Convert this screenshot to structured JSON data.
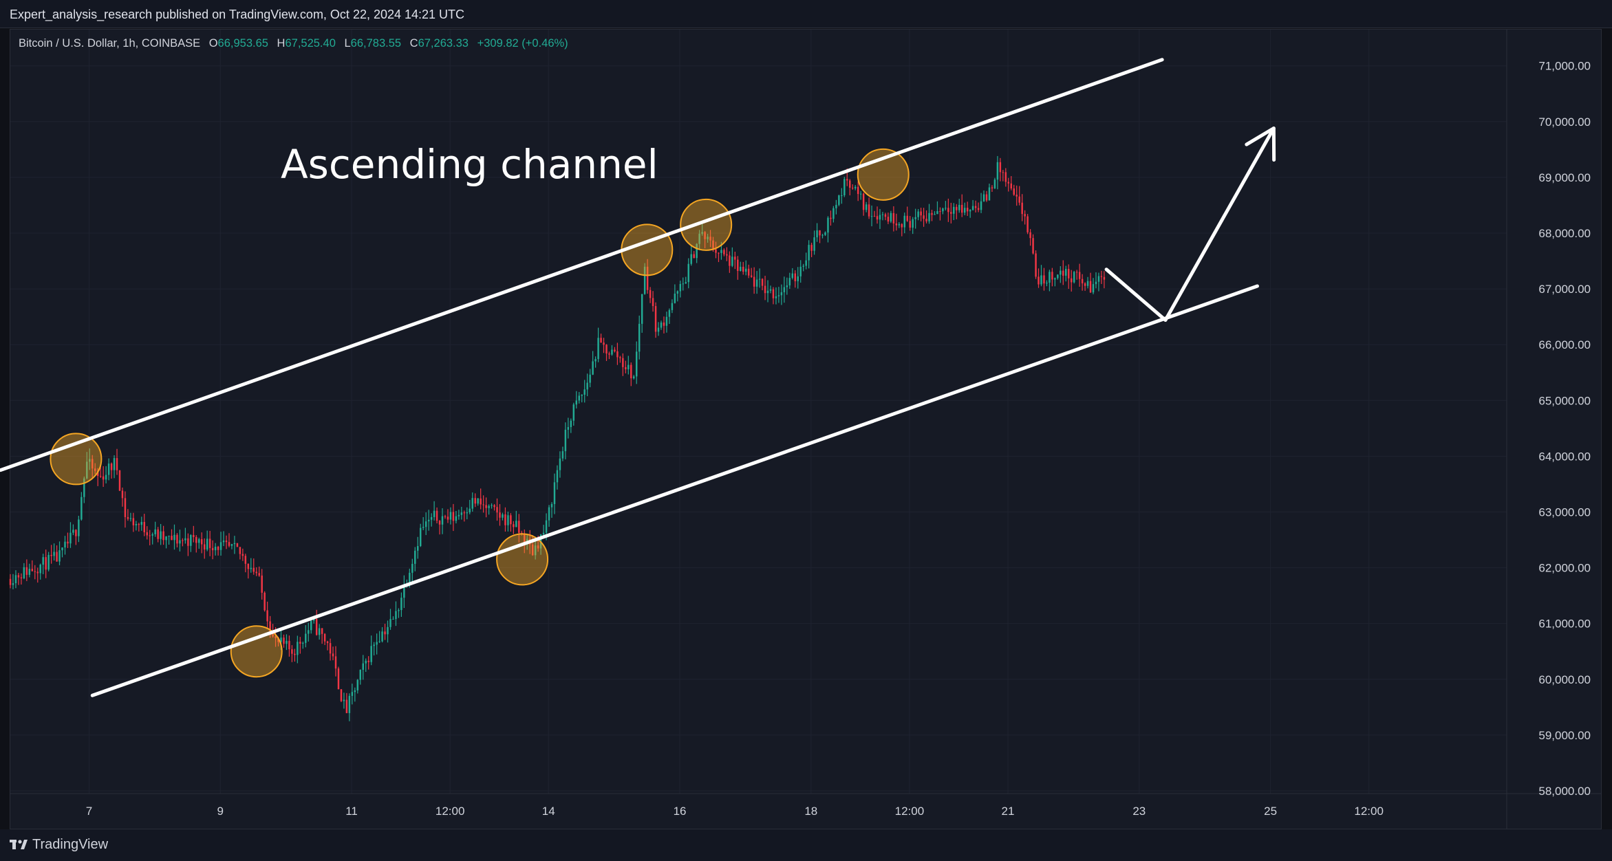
{
  "header": {
    "published_line": "Expert_analysis_research published on TradingView.com, Oct 22, 2024 14:21 UTC"
  },
  "legend": {
    "symbol": "Bitcoin / U.S. Dollar, 1h, COINBASE",
    "o_label": "O",
    "o_value": "66,953.65",
    "h_label": "H",
    "h_value": "67,525.40",
    "l_label": "L",
    "l_value": "66,783.55",
    "c_label": "C",
    "c_value": "67,263.33",
    "change": "+309.82 (+0.46%)"
  },
  "footer": {
    "brand": "TradingView"
  },
  "colors": {
    "up": "#22ab94",
    "down": "#f23645",
    "background": "#161a25",
    "marker_fill": "#f5a623",
    "line": "#ffffff"
  },
  "chart_data": {
    "type": "candlestick",
    "symbol": "Bitcoin / U.S. Dollar",
    "interval": "1h",
    "exchange": "COINBASE",
    "y_axis": {
      "ticks": [
        "71,000.00",
        "70,000.00",
        "69,000.00",
        "68,000.00",
        "67,000.00",
        "66,000.00",
        "65,000.00",
        "64,000.00",
        "63,000.00",
        "62,000.00",
        "61,000.00",
        "60,000.00",
        "59,000.00",
        "58,000.00"
      ],
      "tick_values": [
        71000,
        70000,
        69000,
        68000,
        67000,
        66000,
        65000,
        64000,
        63000,
        62000,
        61000,
        60000,
        59000,
        58000
      ],
      "range": [
        57950,
        71650
      ]
    },
    "x_axis": {
      "ticks": [
        "7",
        "9",
        "11",
        "12:00",
        "14",
        "16",
        "18",
        "12:00",
        "21",
        "23",
        "25",
        "12:00"
      ],
      "tick_days": [
        7,
        9,
        11,
        12.5,
        14,
        16,
        18,
        19.5,
        21,
        23,
        25,
        26.5
      ],
      "range": [
        5.8,
        28.6
      ]
    },
    "price_path": [
      [
        5.8,
        61800
      ],
      [
        6.2,
        62000
      ],
      [
        6.6,
        62200
      ],
      [
        6.85,
        62700
      ],
      [
        7.0,
        63900
      ],
      [
        7.2,
        63600
      ],
      [
        7.45,
        63900
      ],
      [
        7.6,
        62900
      ],
      [
        7.9,
        62700
      ],
      [
        8.2,
        62500
      ],
      [
        8.6,
        62500
      ],
      [
        9.0,
        62400
      ],
      [
        9.3,
        62300
      ],
      [
        9.6,
        61900
      ],
      [
        9.85,
        60700
      ],
      [
        10.15,
        60500
      ],
      [
        10.45,
        61000
      ],
      [
        10.7,
        60600
      ],
      [
        10.95,
        59400
      ],
      [
        11.15,
        60000
      ],
      [
        11.4,
        60700
      ],
      [
        11.7,
        61100
      ],
      [
        11.9,
        61900
      ],
      [
        12.1,
        62700
      ],
      [
        12.3,
        62900
      ],
      [
        12.6,
        62900
      ],
      [
        12.9,
        63200
      ],
      [
        13.2,
        63000
      ],
      [
        13.5,
        62800
      ],
      [
        13.8,
        62300
      ],
      [
        14.0,
        62700
      ],
      [
        14.2,
        63900
      ],
      [
        14.4,
        64800
      ],
      [
        14.6,
        65200
      ],
      [
        14.8,
        66000
      ],
      [
        15.1,
        65800
      ],
      [
        15.35,
        65400
      ],
      [
        15.5,
        67400
      ],
      [
        15.7,
        66200
      ],
      [
        15.9,
        66700
      ],
      [
        16.1,
        67100
      ],
      [
        16.35,
        68000
      ],
      [
        16.6,
        67700
      ],
      [
        16.9,
        67400
      ],
      [
        17.2,
        67100
      ],
      [
        17.5,
        66900
      ],
      [
        17.8,
        67200
      ],
      [
        18.05,
        67800
      ],
      [
        18.3,
        68200
      ],
      [
        18.6,
        69000
      ],
      [
        18.9,
        68400
      ],
      [
        19.2,
        68300
      ],
      [
        19.5,
        68200
      ],
      [
        19.8,
        68300
      ],
      [
        20.1,
        68500
      ],
      [
        20.4,
        68400
      ],
      [
        20.7,
        68600
      ],
      [
        20.9,
        69200
      ],
      [
        21.1,
        68700
      ],
      [
        21.3,
        68300
      ],
      [
        21.5,
        67100
      ],
      [
        21.8,
        67300
      ],
      [
        22.1,
        67200
      ],
      [
        22.3,
        67000
      ],
      [
        22.48,
        67263
      ]
    ],
    "annotations": {
      "label": "Ascending channel",
      "upper_channel": {
        "start": [
          5.65,
          63750
        ],
        "end": [
          23.35,
          71110
        ]
      },
      "lower_channel": {
        "start": [
          7.05,
          59710
        ],
        "end": [
          24.8,
          67050
        ]
      },
      "projection": [
        [
          22.5,
          67350
        ],
        [
          23.4,
          66440
        ],
        [
          25.05,
          69880
        ]
      ],
      "touch_points": [
        [
          6.8,
          63950
        ],
        [
          9.55,
          60500
        ],
        [
          13.6,
          62150
        ],
        [
          15.5,
          67700
        ],
        [
          16.4,
          68150
        ],
        [
          19.1,
          69050
        ]
      ]
    }
  }
}
